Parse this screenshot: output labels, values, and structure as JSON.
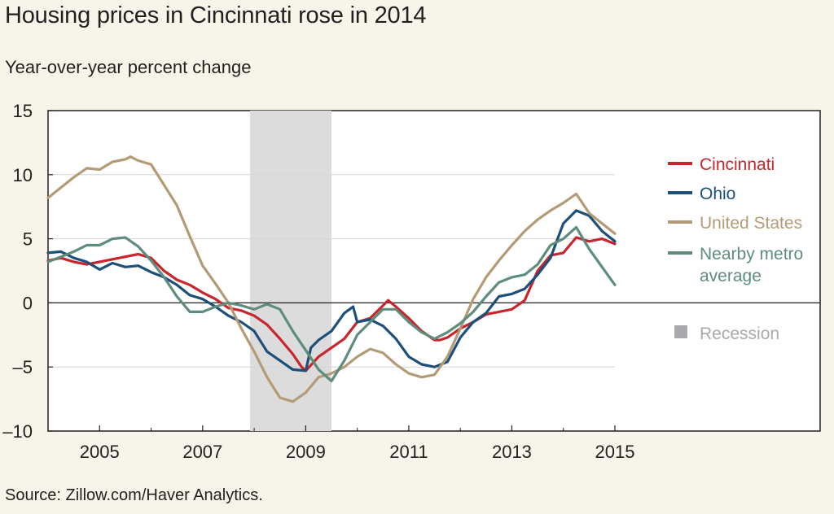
{
  "title": "Housing prices in Cincinnati rose in 2014",
  "subtitle": "Year-over-year percent change",
  "source": "Source: Zillow.com/Haver Analytics.",
  "chart_data": {
    "type": "line",
    "title": "Housing prices in Cincinnati rose in 2014",
    "subtitle": "Year-over-year percent change",
    "xlabel": "",
    "ylabel": "",
    "xlim": [
      2004.0,
      2015.0
    ],
    "ylim": [
      -10,
      15
    ],
    "x_ticks": [
      2005,
      2007,
      2009,
      2011,
      2013,
      2015
    ],
    "y_ticks": [
      15,
      10,
      5,
      0,
      -5,
      -10
    ],
    "y_tick_labels": [
      "15",
      "10",
      "5",
      "0",
      "–5",
      "–10"
    ],
    "grid": "horizontal",
    "legend_position": "right",
    "shaded_regions": [
      {
        "label": "Recession",
        "start": 2007.92,
        "end": 2009.5,
        "color": "#dcdcdc",
        "legend_color": "#a7a9ac"
      }
    ],
    "series": [
      {
        "name": "Cincinnati",
        "color": "#c8252c",
        "x": [
          2004.0,
          2004.25,
          2004.5,
          2004.75,
          2005.0,
          2005.25,
          2005.5,
          2005.75,
          2006.0,
          2006.25,
          2006.5,
          2006.75,
          2007.0,
          2007.25,
          2007.5,
          2007.75,
          2008.0,
          2008.25,
          2008.5,
          2008.75,
          2008.92,
          2009.0,
          2009.25,
          2009.5,
          2009.75,
          2010.0,
          2010.25,
          2010.5,
          2010.6,
          2010.75,
          2011.0,
          2011.25,
          2011.5,
          2011.6,
          2011.75,
          2012.0,
          2012.25,
          2012.5,
          2012.75,
          2013.0,
          2013.25,
          2013.5,
          2013.75,
          2014.0,
          2014.25,
          2014.5,
          2014.75,
          2015.0
        ],
        "values": [
          3.3,
          3.5,
          3.2,
          3.0,
          3.2,
          3.4,
          3.6,
          3.8,
          3.5,
          2.5,
          1.8,
          1.4,
          0.8,
          0.3,
          -0.4,
          -0.6,
          -1.0,
          -1.7,
          -2.8,
          -4.0,
          -5.0,
          -5.3,
          -4.2,
          -3.5,
          -2.8,
          -1.5,
          -1.2,
          -0.2,
          0.2,
          -0.3,
          -1.2,
          -2.2,
          -2.9,
          -2.9,
          -2.7,
          -2.0,
          -1.5,
          -0.9,
          -0.7,
          -0.5,
          0.2,
          2.5,
          3.7,
          3.9,
          5.1,
          4.8,
          5.0,
          4.6
        ]
      },
      {
        "name": "Ohio",
        "color": "#1d4f7b",
        "x": [
          2004.0,
          2004.25,
          2004.5,
          2004.75,
          2005.0,
          2005.25,
          2005.5,
          2005.75,
          2006.0,
          2006.25,
          2006.5,
          2006.75,
          2007.0,
          2007.25,
          2007.5,
          2007.75,
          2008.0,
          2008.25,
          2008.5,
          2008.75,
          2009.0,
          2009.1,
          2009.25,
          2009.5,
          2009.75,
          2009.92,
          2010.0,
          2010.25,
          2010.5,
          2010.75,
          2011.0,
          2011.25,
          2011.5,
          2011.75,
          2012.0,
          2012.25,
          2012.5,
          2012.75,
          2013.0,
          2013.25,
          2013.5,
          2013.75,
          2014.0,
          2014.25,
          2014.5,
          2014.75,
          2015.0
        ],
        "values": [
          3.9,
          4.0,
          3.5,
          3.2,
          2.6,
          3.1,
          2.8,
          2.9,
          2.4,
          2.0,
          1.4,
          0.6,
          0.3,
          -0.3,
          -1.0,
          -1.5,
          -2.2,
          -3.8,
          -4.5,
          -5.2,
          -5.3,
          -3.5,
          -2.9,
          -2.2,
          -0.8,
          -0.3,
          -1.5,
          -1.3,
          -1.8,
          -2.8,
          -4.2,
          -4.8,
          -5.0,
          -4.6,
          -2.7,
          -1.5,
          -0.8,
          0.5,
          0.7,
          1.1,
          2.2,
          3.5,
          6.2,
          7.2,
          6.8,
          5.6,
          4.8
        ]
      },
      {
        "name": "United States",
        "color": "#b39b76",
        "x": [
          2004.0,
          2004.25,
          2004.5,
          2004.75,
          2005.0,
          2005.25,
          2005.5,
          2005.6,
          2005.75,
          2006.0,
          2006.25,
          2006.5,
          2006.75,
          2007.0,
          2007.25,
          2007.5,
          2007.75,
          2008.0,
          2008.25,
          2008.5,
          2008.75,
          2009.0,
          2009.25,
          2009.5,
          2009.75,
          2010.0,
          2010.25,
          2010.5,
          2010.75,
          2011.0,
          2011.25,
          2011.5,
          2011.75,
          2012.0,
          2012.25,
          2012.5,
          2012.75,
          2013.0,
          2013.25,
          2013.5,
          2013.75,
          2014.0,
          2014.25,
          2014.5,
          2014.75,
          2015.0
        ],
        "values": [
          8.2,
          9.0,
          9.8,
          10.5,
          10.4,
          11.0,
          11.2,
          11.4,
          11.1,
          10.8,
          9.2,
          7.6,
          5.2,
          2.9,
          1.5,
          0.0,
          -2.0,
          -3.8,
          -5.8,
          -7.4,
          -7.7,
          -7.0,
          -5.8,
          -5.5,
          -5.0,
          -4.2,
          -3.6,
          -3.9,
          -4.8,
          -5.5,
          -5.8,
          -5.6,
          -4.2,
          -2.0,
          0.3,
          2.0,
          3.3,
          4.5,
          5.6,
          6.5,
          7.2,
          7.8,
          8.5,
          7.0,
          6.2,
          5.4
        ]
      },
      {
        "name": "Nearby metro average",
        "color": "#5e8d7b",
        "x": [
          2004.0,
          2004.25,
          2004.5,
          2004.75,
          2005.0,
          2005.25,
          2005.5,
          2005.75,
          2006.0,
          2006.25,
          2006.5,
          2006.75,
          2007.0,
          2007.25,
          2007.5,
          2007.75,
          2008.0,
          2008.25,
          2008.5,
          2008.75,
          2009.0,
          2009.25,
          2009.5,
          2009.75,
          2010.0,
          2010.25,
          2010.5,
          2010.75,
          2011.0,
          2011.25,
          2011.5,
          2011.75,
          2012.0,
          2012.25,
          2012.5,
          2012.75,
          2013.0,
          2013.25,
          2013.5,
          2013.75,
          2014.0,
          2014.25,
          2014.5,
          2014.75,
          2015.0
        ],
        "values": [
          3.2,
          3.6,
          4.0,
          4.5,
          4.5,
          5.0,
          5.1,
          4.4,
          3.3,
          2.0,
          0.5,
          -0.7,
          -0.7,
          -0.3,
          0.0,
          -0.2,
          -0.5,
          -0.1,
          -0.5,
          -2.2,
          -3.7,
          -5.2,
          -6.1,
          -4.5,
          -2.5,
          -1.5,
          -0.5,
          -0.5,
          -1.5,
          -2.3,
          -2.8,
          -2.3,
          -1.6,
          -0.7,
          0.5,
          1.6,
          2.0,
          2.2,
          3.0,
          4.5,
          5.0,
          5.9,
          4.2,
          2.8,
          1.4
        ]
      }
    ]
  }
}
